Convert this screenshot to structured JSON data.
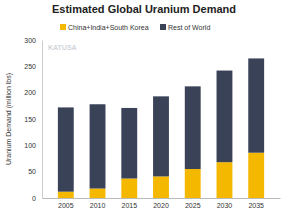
{
  "chart_data": {
    "type": "bar",
    "stacked": true,
    "title": "Estimated Global Uranium Demand",
    "y_label": "Uranium Demand (million lbs)",
    "annotations": [
      "KATUSA"
    ],
    "categories": [
      "2005",
      "2010",
      "2015",
      "2020",
      "2025",
      "2030",
      "2035"
    ],
    "series": [
      {
        "name": "China+India+South Korea",
        "color": "#f5b800",
        "values": [
          12,
          18,
          37,
          41,
          55,
          68,
          86
        ]
      },
      {
        "name": "Rest of World",
        "color": "#3a4257",
        "values": [
          160,
          160,
          134,
          152,
          157,
          174,
          179
        ]
      }
    ],
    "ylim": [
      0,
      300
    ],
    "yticks": [
      0,
      50,
      100,
      150,
      200,
      250,
      300
    ],
    "grid": false,
    "legend": "top"
  }
}
